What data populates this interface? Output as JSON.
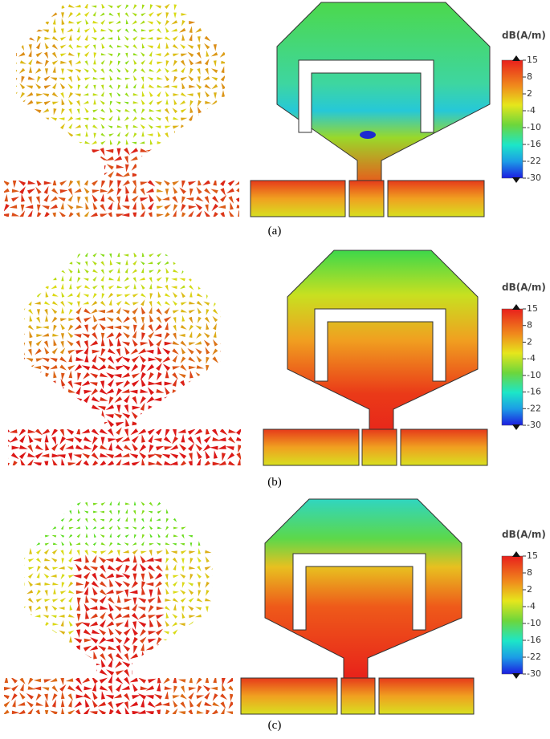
{
  "panels": [
    {
      "label": "(a)",
      "colorbar": {
        "title": "dB(A/m)",
        "ticks": [
          15,
          8,
          2,
          -4,
          -10,
          -16,
          -22,
          -30
        ]
      }
    },
    {
      "label": "(b)",
      "colorbar": {
        "title": "dB(A/m)",
        "ticks": [
          15,
          8,
          2,
          -4,
          -10,
          -16,
          -22,
          -30
        ]
      }
    },
    {
      "label": "(c)",
      "colorbar": {
        "title": "dB(A/m)",
        "ticks": [
          15,
          8,
          2,
          -4,
          -10,
          -16,
          -22,
          -30
        ]
      }
    }
  ]
}
